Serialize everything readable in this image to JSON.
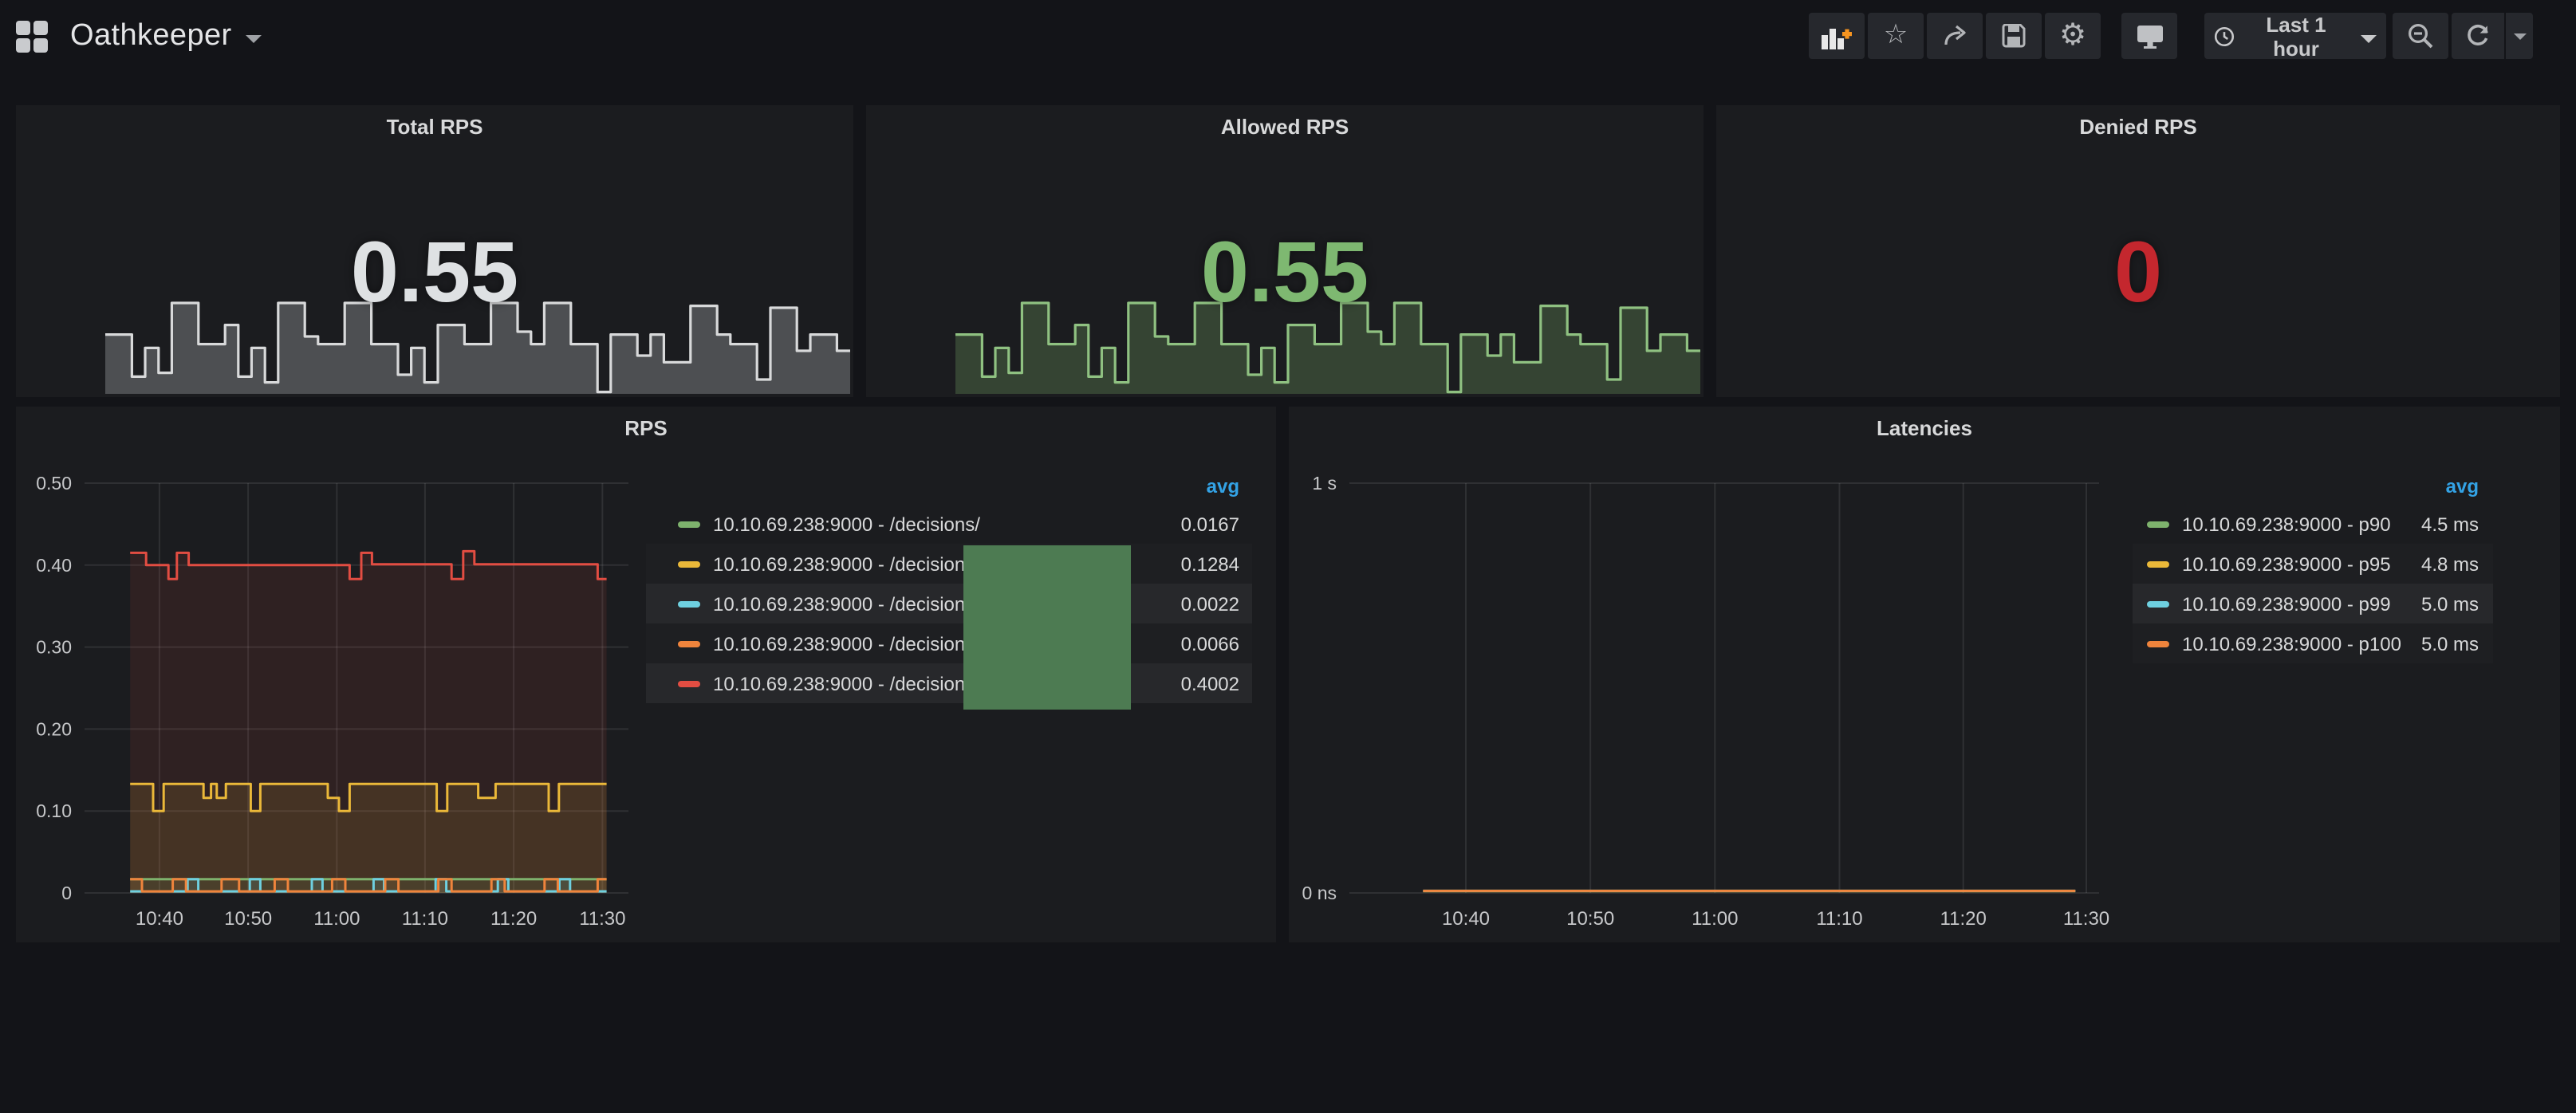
{
  "header": {
    "title": "Oathkeeper",
    "time_range": "Last 1 hour",
    "toolbar_icons": [
      "add-panel",
      "star",
      "share",
      "save",
      "settings",
      "cycle-view-mode",
      "clock",
      "zoom-out",
      "refresh",
      "refresh-interval-caret"
    ],
    "glyphs": {
      "star": "☆",
      "settings": "⚙"
    }
  },
  "colors": {
    "page_bg": "#131418",
    "panel_bg": "#1b1c1f",
    "text": "#d8d9da",
    "axis_text": "#c7c8ca",
    "legend_header_blue": "#33a2e5",
    "grid_line": "rgba(255,255,255,0.09)",
    "overlay_box_green": "#4d7b52",
    "series_green": "#7eb26d",
    "series_yellow": "#eab839",
    "series_cyan": "#6ed0e0",
    "series_orange": "#ef843c",
    "series_red": "#e24d42"
  },
  "stat_panels": [
    {
      "title": "Total RPS",
      "value": "0.55",
      "value_color": "#dee1e3",
      "spark_stroke": "#d8d9da",
      "spark_fill": "rgba(214,217,220,0.27)",
      "has_sparkline": true
    },
    {
      "title": "Allowed RPS",
      "value": "0.55",
      "value_color": "#7eb871",
      "spark_stroke": "#8fc181",
      "spark_fill": "rgba(126,178,109,0.27)",
      "has_sparkline": true
    },
    {
      "title": "Denied RPS",
      "value": "0",
      "value_color": "#c4272e",
      "has_sparkline": false
    }
  ],
  "sparkline_values": [
    0.62,
    0.62,
    0.18,
    0.48,
    0.22,
    0.95,
    0.95,
    0.52,
    0.52,
    0.72,
    0.18,
    0.48,
    0.12,
    0.95,
    0.95,
    0.6,
    0.52,
    0.52,
    0.95,
    0.95,
    0.52,
    0.52,
    0.2,
    0.48,
    0.12,
    0.72,
    0.72,
    0.52,
    0.52,
    0.95,
    0.95,
    0.65,
    0.52,
    0.95,
    0.95,
    0.52,
    0.52,
    0.02,
    0.62,
    0.62,
    0.4,
    0.62,
    0.33,
    0.33,
    0.92,
    0.92,
    0.62,
    0.52,
    0.52,
    0.15,
    0.9,
    0.9,
    0.45,
    0.62,
    0.62,
    0.45
  ],
  "chart_data": [
    {
      "type": "line",
      "title": "RPS",
      "legend_position": "right",
      "legend_value_header": "avg",
      "grid": true,
      "ylim": [
        0,
        0.5
      ],
      "ytick_labels": [
        "0.50",
        "0.40",
        "0.30",
        "0.20",
        "0.10",
        "0"
      ],
      "xtick_labels": [
        "10:40",
        "10:50",
        "11:00",
        "11:10",
        "11:20",
        "11:30"
      ],
      "data_end": 0.983,
      "series": [
        {
          "name": "10.10.69.238:9000 - /decisions/",
          "color": "#7eb26d",
          "avg": "0.0167",
          "fill": 0.1,
          "points": [
            [
              0.086,
              0.0167
            ]
          ]
        },
        {
          "name": "10.10.69.238:9000 - /decisions/",
          "color": "#eab839",
          "avg": "0.1284",
          "fill": 0.12,
          "points": [
            [
              0.086,
              0.133
            ],
            [
              0.129,
              0.1
            ],
            [
              0.149,
              0.133
            ],
            [
              0.224,
              0.116
            ],
            [
              0.238,
              0.133
            ],
            [
              0.249,
              0.116
            ],
            [
              0.266,
              0.133
            ],
            [
              0.313,
              0.1
            ],
            [
              0.331,
              0.133
            ],
            [
              0.458,
              0.116
            ],
            [
              0.479,
              0.1
            ],
            [
              0.499,
              0.133
            ],
            [
              0.663,
              0.1
            ],
            [
              0.683,
              0.133
            ],
            [
              0.741,
              0.116
            ],
            [
              0.774,
              0.133
            ],
            [
              0.874,
              0.1
            ],
            [
              0.893,
              0.133
            ]
          ]
        },
        {
          "name": "10.10.69.238:9000 - /decisions/",
          "color": "#6ed0e0",
          "avg": "0.0022",
          "fill": 0.1,
          "points": [
            [
              0.086,
              0.002
            ],
            [
              0.194,
              0.0167
            ],
            [
              0.214,
              0.002
            ],
            [
              0.311,
              0.0167
            ],
            [
              0.331,
              0.002
            ],
            [
              0.428,
              0.0167
            ],
            [
              0.448,
              0.002
            ],
            [
              0.544,
              0.0167
            ],
            [
              0.564,
              0.002
            ],
            [
              0.661,
              0.0167
            ],
            [
              0.681,
              0.002
            ],
            [
              0.778,
              0.0167
            ],
            [
              0.798,
              0.002
            ],
            [
              0.894,
              0.0167
            ],
            [
              0.914,
              0.002
            ]
          ]
        },
        {
          "name": "10.10.69.238:9000 - /decisions/",
          "color": "#ef843c",
          "avg": "0.0066",
          "fill": 0.1,
          "points": [
            [
              0.086,
              0.0167
            ],
            [
              0.108,
              0.002
            ],
            [
              0.166,
              0.0167
            ],
            [
              0.191,
              0.002
            ],
            [
              0.258,
              0.0167
            ],
            [
              0.291,
              0.002
            ],
            [
              0.358,
              0.0167
            ],
            [
              0.383,
              0.002
            ],
            [
              0.466,
              0.0167
            ],
            [
              0.491,
              0.002
            ],
            [
              0.566,
              0.0167
            ],
            [
              0.591,
              0.002
            ],
            [
              0.666,
              0.0167
            ],
            [
              0.691,
              0.002
            ],
            [
              0.766,
              0.0167
            ],
            [
              0.791,
              0.002
            ],
            [
              0.866,
              0.0167
            ],
            [
              0.891,
              0.002
            ],
            [
              0.966,
              0.0167
            ]
          ]
        },
        {
          "name": "10.10.69.238:9000 - /decisions/",
          "color": "#e24d42",
          "avg": "0.4002",
          "fill": 0.1,
          "points": [
            [
              0.086,
              0.415
            ],
            [
              0.116,
              0.4
            ],
            [
              0.158,
              0.383
            ],
            [
              0.174,
              0.415
            ],
            [
              0.196,
              0.4
            ],
            [
              0.499,
              0.383
            ],
            [
              0.521,
              0.415
            ],
            [
              0.541,
              0.401
            ],
            [
              0.691,
              0.383
            ],
            [
              0.713,
              0.417
            ],
            [
              0.734,
              0.401
            ],
            [
              0.966,
              0.383
            ]
          ]
        }
      ]
    },
    {
      "type": "line",
      "title": "Latencies",
      "legend_position": "right",
      "legend_value_header": "avg",
      "grid": true,
      "ylim": [
        0,
        1
      ],
      "ylim_unit": "seconds",
      "ytick_labels": [
        "1 s",
        "0 ns"
      ],
      "xtick_labels": [
        "10:40",
        "10:50",
        "11:00",
        "11:10",
        "11:20",
        "11:30"
      ],
      "data_end": 0.985,
      "series": [
        {
          "name": "10.10.69.238:9000 - p90",
          "color": "#7eb26d",
          "avg": "4.5 ms",
          "fill": 0,
          "points": [
            [
              0.1,
              0.0045
            ]
          ]
        },
        {
          "name": "10.10.69.238:9000 - p95",
          "color": "#eab839",
          "avg": "4.8 ms",
          "fill": 0,
          "points": [
            [
              0.1,
              0.0048
            ]
          ]
        },
        {
          "name": "10.10.69.238:9000 - p99",
          "color": "#6ed0e0",
          "avg": "5.0 ms",
          "fill": 0,
          "points": [
            [
              0.1,
              0.005
            ]
          ]
        },
        {
          "name": "10.10.69.238:9000 - p100",
          "color": "#ef843c",
          "avg": "5.0 ms",
          "fill": 0,
          "points": [
            [
              0.1,
              0.0052
            ]
          ]
        }
      ]
    }
  ]
}
